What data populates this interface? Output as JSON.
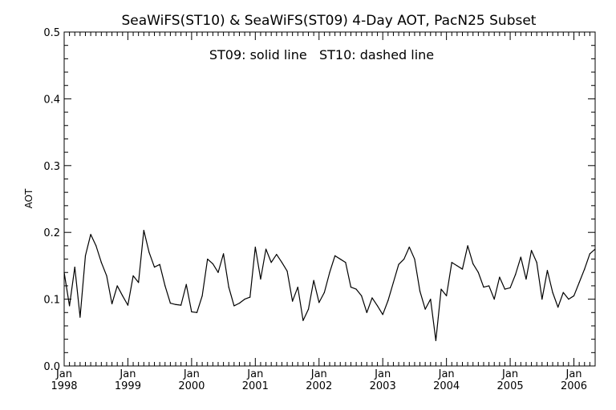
{
  "chart_data": {
    "type": "line",
    "title": "SeaWiFS(ST10) & SeaWiFS(ST09) 4-Day AOT, PacN25 Subset",
    "annotation": "ST09: solid line   ST10: dashed line",
    "ylabel": "AOT",
    "xlabel": "",
    "ylim": [
      0.0,
      0.5
    ],
    "xlim": [
      "1998-01-01",
      "2006-05-01"
    ],
    "y_ticks": [
      "0.0",
      "0.1",
      "0.2",
      "0.3",
      "0.4",
      "0.5"
    ],
    "x_ticks": [
      {
        "month": "Jan",
        "year": "1998"
      },
      {
        "month": "Jan",
        "year": "1999"
      },
      {
        "month": "Jan",
        "year": "2000"
      },
      {
        "month": "Jan",
        "year": "2001"
      },
      {
        "month": "Jan",
        "year": "2002"
      },
      {
        "month": "Jan",
        "year": "2003"
      },
      {
        "month": "Jan",
        "year": "2004"
      },
      {
        "month": "Jan",
        "year": "2005"
      },
      {
        "month": "Jan",
        "year": "2006"
      }
    ],
    "grid": false,
    "series": [
      {
        "name": "ST09",
        "style": "solid",
        "color": "#000000",
        "x": [
          "1998-01",
          "1998-02",
          "1998-03",
          "1998-04",
          "1998-05",
          "1998-06",
          "1998-07",
          "1998-08",
          "1998-09",
          "1998-10",
          "1998-11",
          "1998-12",
          "1999-01",
          "1999-02",
          "1999-03",
          "1999-04",
          "1999-05",
          "1999-06",
          "1999-07",
          "1999-08",
          "1999-09",
          "1999-10",
          "1999-11",
          "1999-12",
          "2000-01",
          "2000-02",
          "2000-03",
          "2000-04",
          "2000-05",
          "2000-06",
          "2000-07",
          "2000-08",
          "2000-09",
          "2000-10",
          "2000-11",
          "2000-12",
          "2001-01",
          "2001-02",
          "2001-03",
          "2001-04",
          "2001-05",
          "2001-06",
          "2001-07",
          "2001-08",
          "2001-09",
          "2001-10",
          "2001-11",
          "2001-12",
          "2002-01",
          "2002-02",
          "2002-03",
          "2002-04",
          "2002-05",
          "2002-06",
          "2002-07",
          "2002-08",
          "2002-09",
          "2002-10",
          "2002-11",
          "2002-12",
          "2003-01",
          "2003-02",
          "2003-03",
          "2003-04",
          "2003-05",
          "2003-06",
          "2003-07",
          "2003-08",
          "2003-09",
          "2003-10",
          "2003-11",
          "2003-12",
          "2004-01",
          "2004-02",
          "2004-03",
          "2004-04",
          "2004-05",
          "2004-06",
          "2004-07",
          "2004-08",
          "2004-09",
          "2004-10",
          "2004-11",
          "2004-12",
          "2005-01",
          "2005-02",
          "2005-03",
          "2005-04",
          "2005-05",
          "2005-06",
          "2005-07",
          "2005-08",
          "2005-09",
          "2005-10",
          "2005-11",
          "2005-12",
          "2006-01",
          "2006-02",
          "2006-03",
          "2006-04",
          "2006-05"
        ],
        "values": [
          0.14,
          0.09,
          0.148,
          0.073,
          0.165,
          0.197,
          0.18,
          0.155,
          0.135,
          0.093,
          0.12,
          0.105,
          0.091,
          0.135,
          0.125,
          0.203,
          0.17,
          0.148,
          0.152,
          0.12,
          0.094,
          0.092,
          0.091,
          0.122,
          0.081,
          0.08,
          0.105,
          0.16,
          0.153,
          0.14,
          0.168,
          0.118,
          0.09,
          0.094,
          0.1,
          0.103,
          0.178,
          0.13,
          0.175,
          0.155,
          0.167,
          0.155,
          0.142,
          0.097,
          0.118,
          0.068,
          0.085,
          0.128,
          0.095,
          0.11,
          0.14,
          0.165,
          0.16,
          0.155,
          0.118,
          0.115,
          0.105,
          0.08,
          0.102,
          0.09,
          0.077,
          0.098,
          0.125,
          0.152,
          0.16,
          0.178,
          0.16,
          0.112,
          0.085,
          0.1,
          0.038,
          0.115,
          0.105,
          0.155,
          0.15,
          0.145,
          0.18,
          0.153,
          0.14,
          0.118,
          0.12,
          0.1,
          0.133,
          0.115,
          0.117,
          0.137,
          0.163,
          0.13,
          0.173,
          0.155,
          0.1,
          0.143,
          0.11,
          0.088,
          0.11,
          0.1,
          0.105,
          0.125,
          0.145,
          0.168,
          0.175
        ]
      }
    ]
  }
}
